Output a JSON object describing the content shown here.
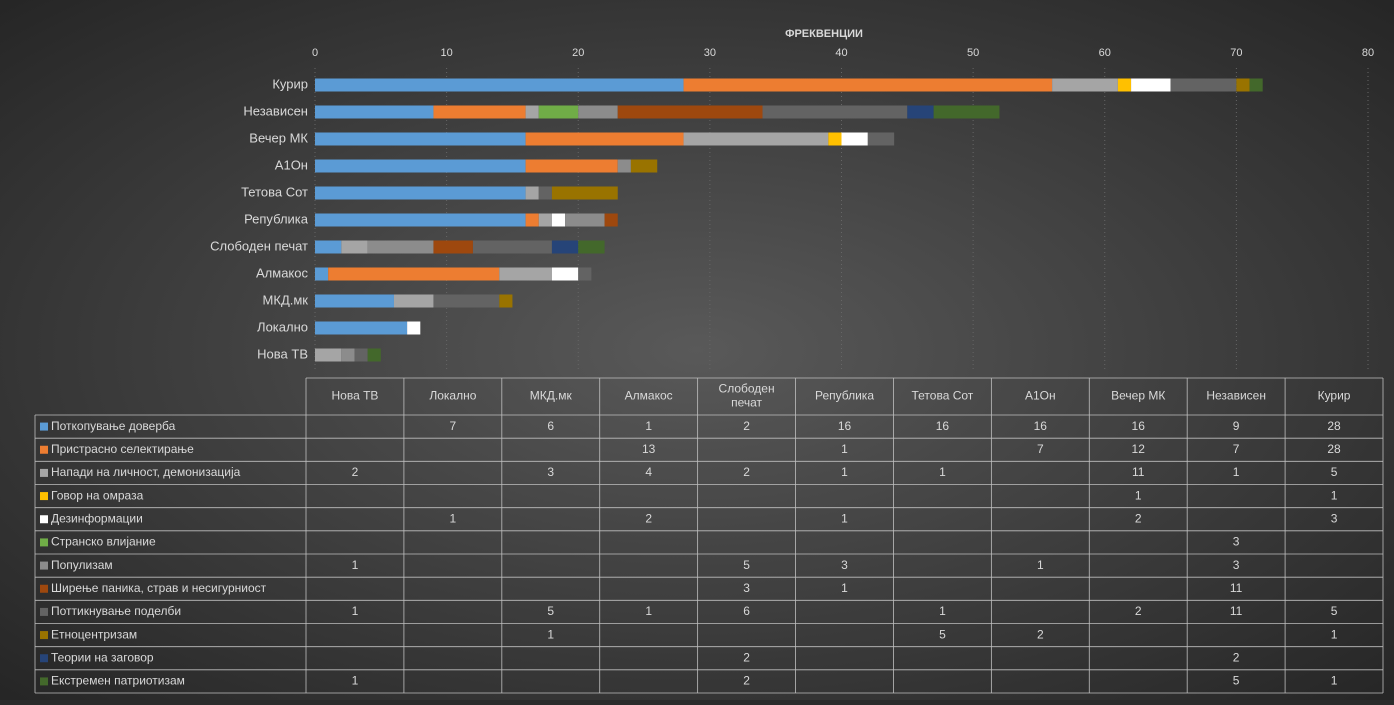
{
  "chart_data": {
    "type": "stacked_barh",
    "x_axis_label": "ФРЕКВЕНЦИИ",
    "categories": [
      "Нова ТВ",
      "Локално",
      "МКД.мк",
      "Алмакос",
      "Слободен печат",
      "Република",
      "Тетова Сот",
      "А1Он",
      "Вечер МК",
      "Независен",
      "Курир"
    ],
    "xlim": [
      0,
      80
    ],
    "xticks": [
      0,
      10,
      20,
      30,
      40,
      50,
      60,
      70,
      80
    ],
    "grid": true,
    "series": [
      {
        "name": "Поткопување доверба",
        "color": "#5b9bd5",
        "values": [
          null,
          7,
          6,
          1,
          2,
          16,
          16,
          16,
          16,
          9,
          28
        ]
      },
      {
        "name": "Пристрасно селектирање",
        "color": "#ed7d31",
        "values": [
          null,
          null,
          null,
          13,
          null,
          1,
          null,
          7,
          12,
          7,
          28
        ]
      },
      {
        "name": "Напади на личност, демонизација",
        "color": "#a5a5a5",
        "values": [
          2,
          null,
          3,
          4,
          2,
          1,
          1,
          null,
          11,
          1,
          5
        ]
      },
      {
        "name": "Говор на омраза",
        "color": "#ffc000",
        "values": [
          null,
          null,
          null,
          null,
          null,
          null,
          null,
          null,
          1,
          null,
          1
        ]
      },
      {
        "name": "Дезинформации",
        "color": "#ffffff",
        "values": [
          null,
          1,
          null,
          2,
          null,
          1,
          null,
          null,
          2,
          null,
          3
        ]
      },
      {
        "name": "Странско влијание",
        "color": "#70ad47",
        "values": [
          null,
          null,
          null,
          null,
          null,
          null,
          null,
          null,
          null,
          3,
          null
        ]
      },
      {
        "name": "Популизам",
        "color": "#8c8c8c",
        "values": [
          1,
          null,
          null,
          null,
          5,
          3,
          null,
          1,
          null,
          3,
          null
        ]
      },
      {
        "name": "Ширење паника, страв и несигурниост",
        "color": "#9e480e",
        "values": [
          null,
          null,
          null,
          null,
          3,
          1,
          null,
          null,
          null,
          11,
          null
        ]
      },
      {
        "name": "Поттикнување поделби",
        "color": "#636363",
        "values": [
          1,
          null,
          5,
          1,
          6,
          null,
          1,
          null,
          2,
          11,
          5
        ]
      },
      {
        "name": "Етноцентризам",
        "color": "#997300",
        "values": [
          null,
          null,
          1,
          null,
          null,
          null,
          5,
          2,
          null,
          null,
          1
        ]
      },
      {
        "name": "Теории на заговор",
        "color": "#264478",
        "values": [
          null,
          null,
          null,
          null,
          2,
          null,
          null,
          null,
          null,
          2,
          null
        ]
      },
      {
        "name": "Екстремен патриотизам",
        "color": "#43682b",
        "values": [
          1,
          null,
          null,
          null,
          2,
          null,
          null,
          null,
          null,
          5,
          1
        ]
      }
    ]
  }
}
